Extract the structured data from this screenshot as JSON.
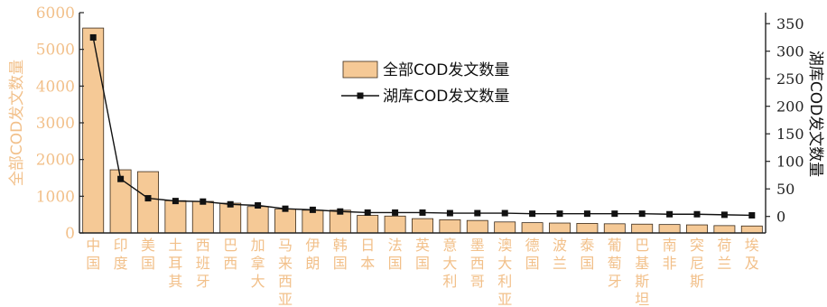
{
  "chart_data": {
    "type": "bar",
    "categories": [
      "中国",
      "印度",
      "美国",
      "土耳其",
      "西班牙",
      "巴西",
      "加拿大",
      "马来西亚",
      "伊朗",
      "韩国",
      "日本",
      "法国",
      "英国",
      "意大利",
      "墨西哥",
      "澳大利亚",
      "德国",
      "波兰",
      "泰国",
      "葡萄牙",
      "巴基斯坦",
      "南非",
      "突尼斯",
      "荷兰",
      "埃及"
    ],
    "series": [
      {
        "name": "全部COD发文数量",
        "axis": "left",
        "color": "#f5c996",
        "values": [
          5580,
          1720,
          1670,
          880,
          860,
          810,
          720,
          650,
          620,
          620,
          480,
          460,
          390,
          360,
          340,
          300,
          280,
          270,
          260,
          250,
          240,
          230,
          220,
          200,
          190
        ]
      },
      {
        "name": "湖库COD发文数量",
        "axis": "right",
        "color": "#111111",
        "values": [
          325,
          68,
          33,
          28,
          27,
          22,
          20,
          14,
          12,
          9,
          7,
          7,
          7,
          6,
          6,
          6,
          5,
          5,
          5,
          5,
          5,
          4,
          4,
          3,
          2
        ]
      }
    ],
    "ylabel_left": "全部COD发文数量",
    "ylabel_right": "湖库COD发文数量",
    "ylim_left": [
      0,
      6000
    ],
    "ylim_right": [
      -30,
      370
    ],
    "yticks_left": [
      "0",
      "1000",
      "2000",
      "3000",
      "4000",
      "5000",
      "6000"
    ],
    "yticks_right": [
      "0",
      "50",
      "100",
      "150",
      "200",
      "250",
      "300",
      "350"
    ],
    "legend_position": "top-center",
    "grid": false
  }
}
